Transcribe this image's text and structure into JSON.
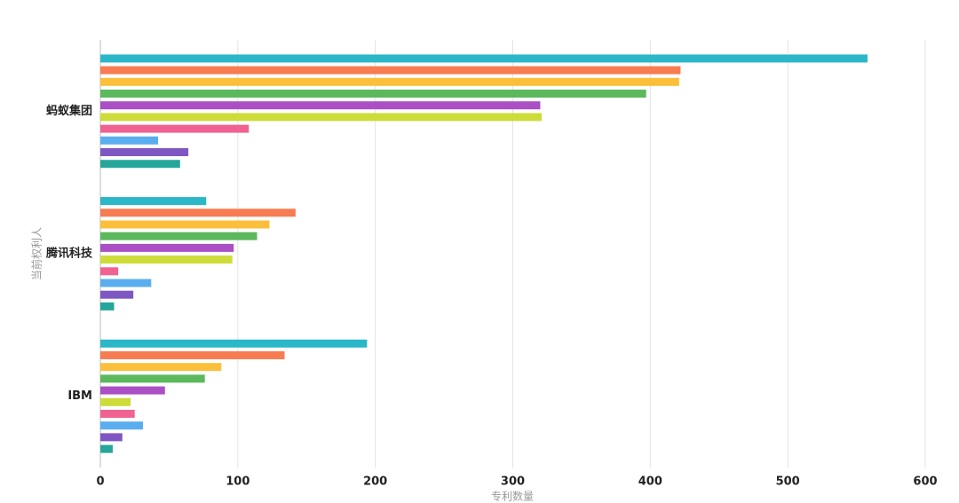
{
  "chart_data": {
    "type": "bar",
    "orientation": "horizontal",
    "xlabel": "专利数量",
    "ylabel": "当前权利人",
    "categories": [
      "蚂蚁集团",
      "腾讯科技",
      "IBM"
    ],
    "series": [
      {
        "color": "#2ab7c8",
        "values": [
          558,
          77,
          194
        ]
      },
      {
        "color": "#f77c52",
        "values": [
          422,
          142,
          134
        ]
      },
      {
        "color": "#fbbf3b",
        "values": [
          421,
          123,
          88
        ]
      },
      {
        "color": "#5cb85c",
        "values": [
          397,
          114,
          76
        ]
      },
      {
        "color": "#ab4fc4",
        "values": [
          320,
          97,
          47
        ]
      },
      {
        "color": "#cddc39",
        "values": [
          321,
          96,
          22
        ]
      },
      {
        "color": "#f06292",
        "values": [
          108,
          13,
          25
        ]
      },
      {
        "color": "#5aaef0",
        "values": [
          42,
          37,
          31
        ]
      },
      {
        "color": "#7e57c2",
        "values": [
          64,
          24,
          16
        ]
      },
      {
        "color": "#26a69a",
        "values": [
          58,
          10,
          9
        ]
      }
    ],
    "xlim": [
      0,
      600
    ],
    "xticks": [
      0,
      100,
      200,
      300,
      400,
      500,
      600
    ],
    "grid": true
  }
}
